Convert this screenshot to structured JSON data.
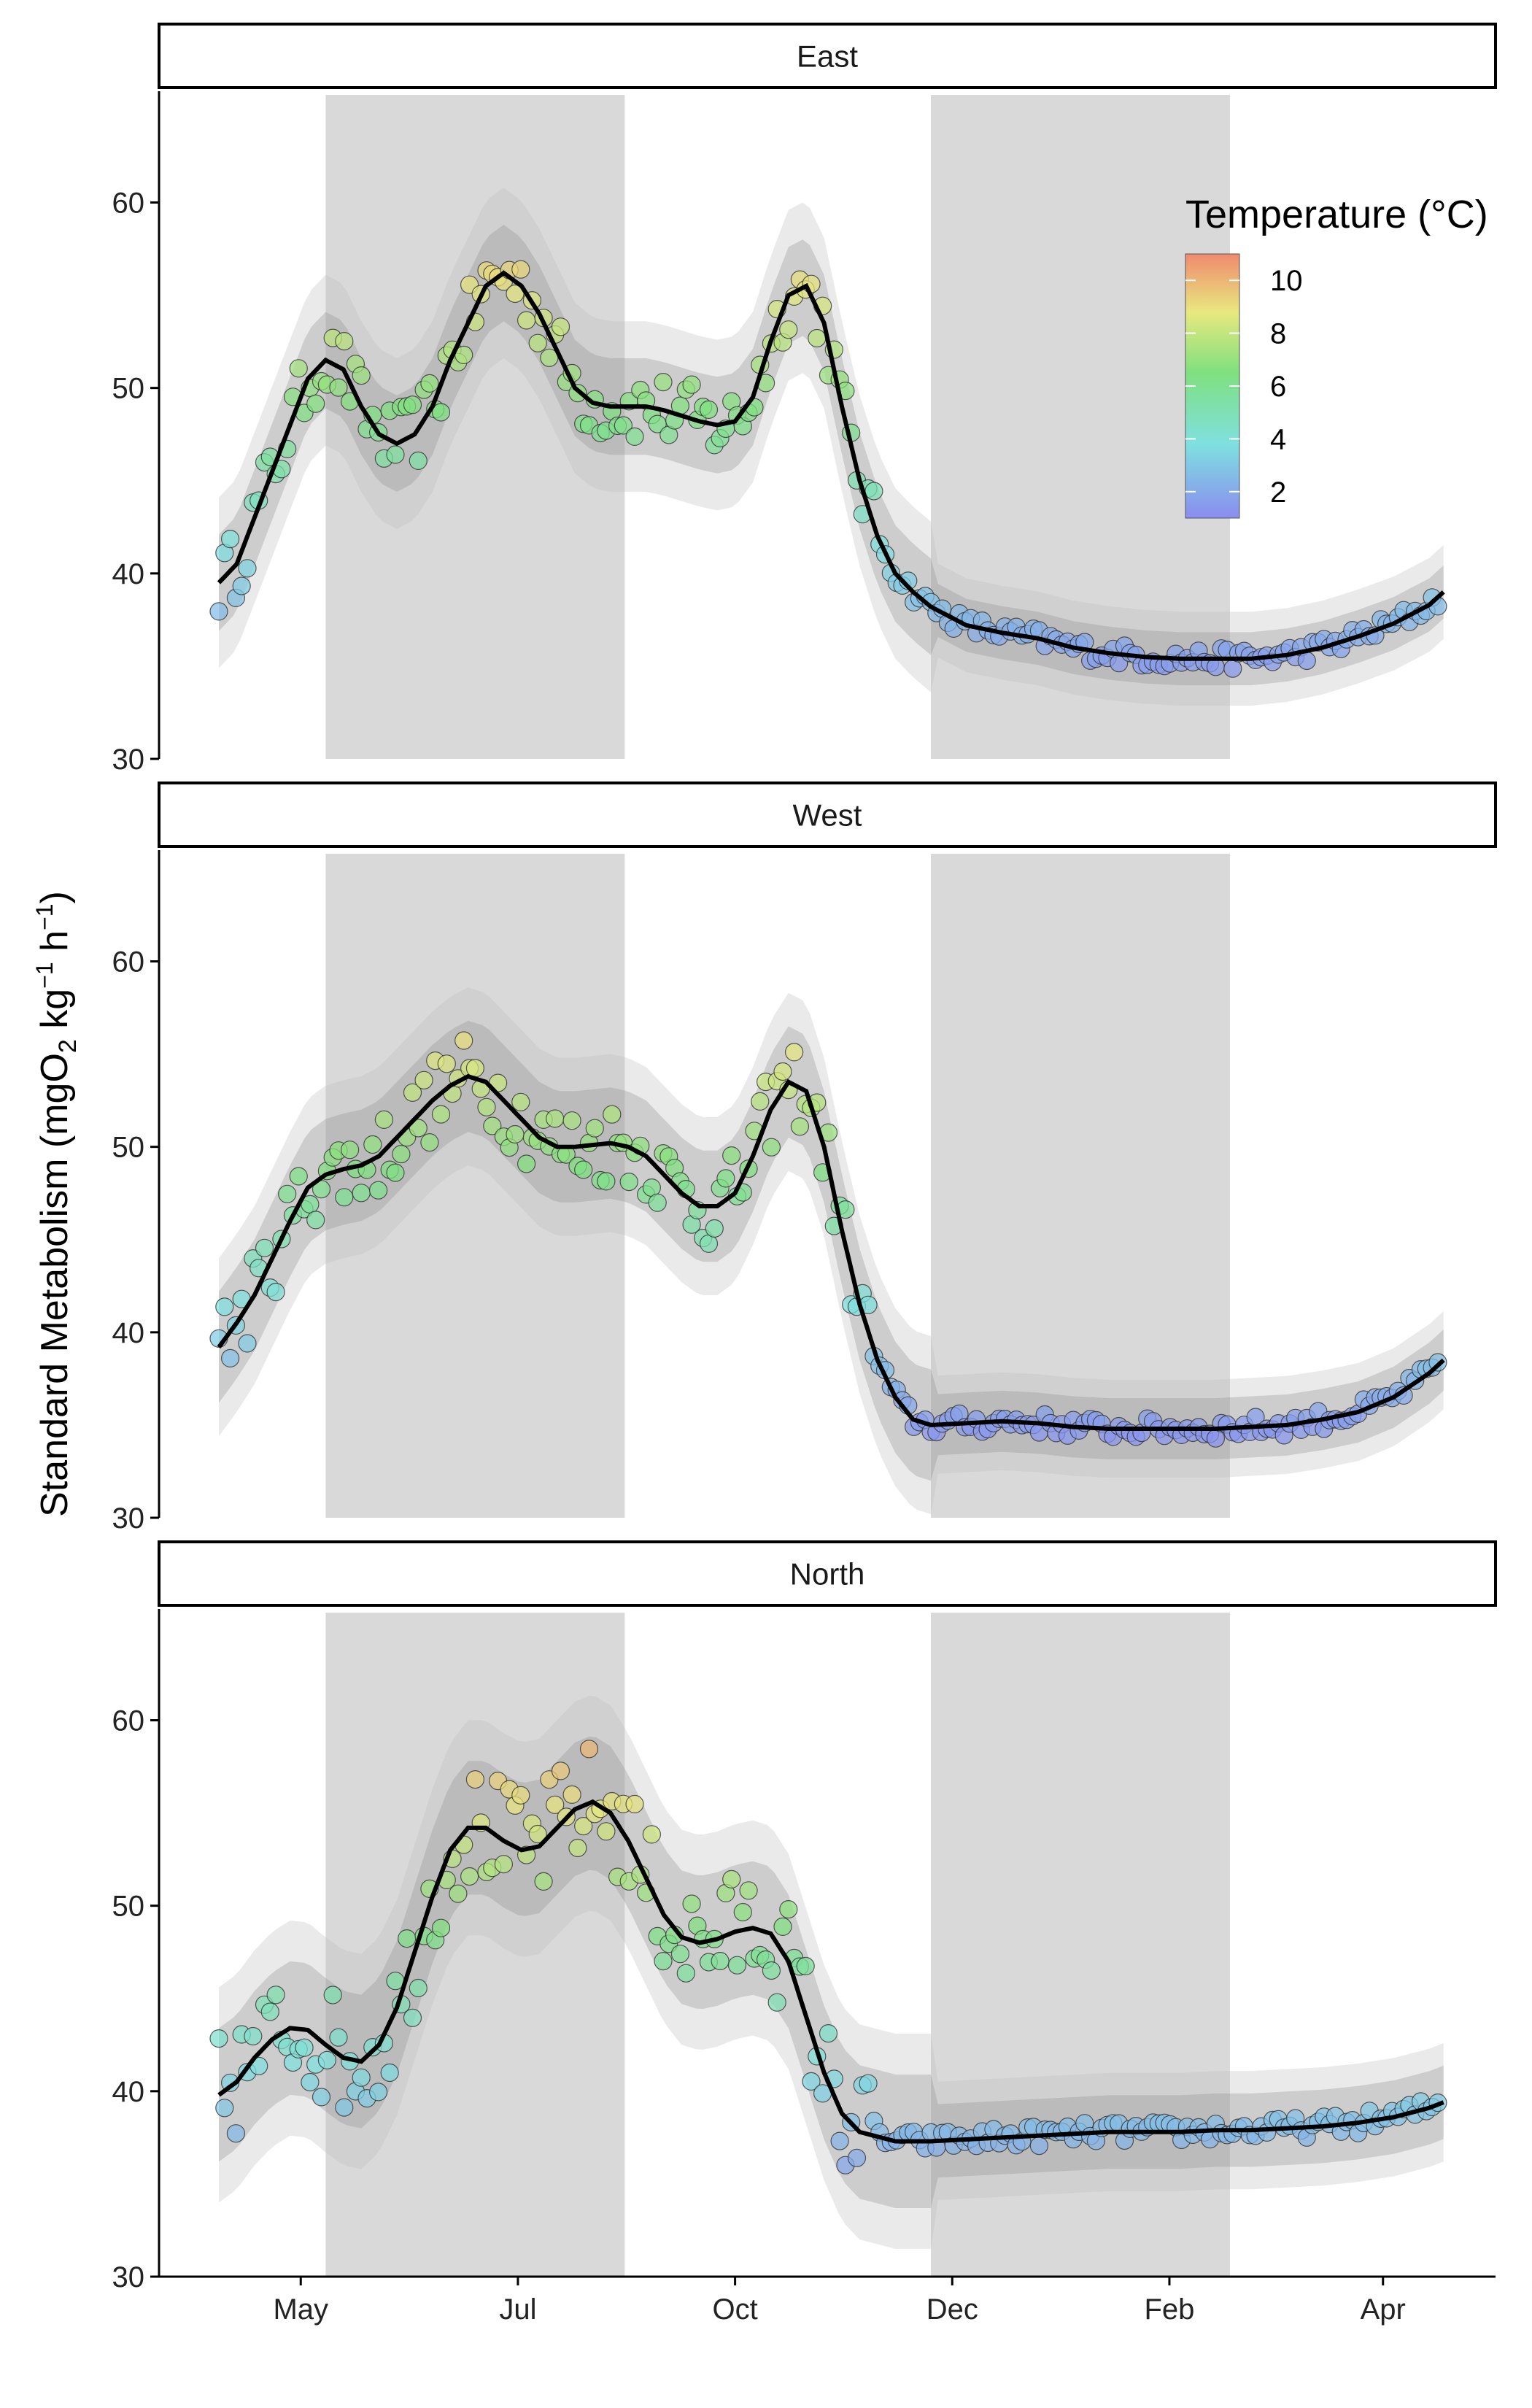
{
  "chart_data": {
    "type": "scatter",
    "ylabel_main": "Standard Metabolism (mgO",
    "ylabel_sub": "2",
    "ylabel_unit1": " kg",
    "ylabel_sup1": "−1",
    "ylabel_unit2": " h",
    "ylabel_sup2": "−1",
    "ylabel_close": ")",
    "ylim": [
      30,
      66
    ],
    "yticks": [
      30,
      40,
      50,
      60
    ],
    "xlim": [
      0,
      365
    ],
    "xticks": [
      {
        "label": "May",
        "day": 23
      },
      {
        "label": "Jul",
        "day": 84
      },
      {
        "label": "Oct",
        "day": 145
      },
      {
        "label": "Dec",
        "day": 206
      },
      {
        "label": "Feb",
        "day": 267
      },
      {
        "label": "Apr",
        "day": 327
      }
    ],
    "shaded_periods": [
      [
        30,
        114
      ],
      [
        200,
        284
      ]
    ],
    "colorbar": {
      "title": "Temperature (°C)",
      "range": [
        1,
        11
      ],
      "ticks": [
        2,
        4,
        6,
        8,
        10
      ],
      "colors": [
        "#8a8cf0",
        "#7fe0e0",
        "#7fe07f",
        "#e8e87f",
        "#f08a6e"
      ]
    },
    "panels": [
      {
        "name": "East",
        "fit": [
          [
            0,
            39.5
          ],
          [
            5,
            40.5
          ],
          [
            10,
            43
          ],
          [
            15,
            45.5
          ],
          [
            20,
            48
          ],
          [
            25,
            50.5
          ],
          [
            30,
            51.5
          ],
          [
            35,
            51
          ],
          [
            40,
            49
          ],
          [
            45,
            47.5
          ],
          [
            50,
            47
          ],
          [
            55,
            47.5
          ],
          [
            60,
            49
          ],
          [
            65,
            51.5
          ],
          [
            70,
            53.5
          ],
          [
            75,
            55.5
          ],
          [
            80,
            56.2
          ],
          [
            85,
            55.5
          ],
          [
            90,
            54
          ],
          [
            95,
            52
          ],
          [
            100,
            50
          ],
          [
            105,
            49.2
          ],
          [
            110,
            49
          ],
          [
            115,
            49
          ],
          [
            120,
            49
          ],
          [
            125,
            48.8
          ],
          [
            130,
            48.5
          ],
          [
            135,
            48.2
          ],
          [
            140,
            48
          ],
          [
            145,
            48.2
          ],
          [
            150,
            49.5
          ],
          [
            155,
            52.5
          ],
          [
            160,
            55
          ],
          [
            165,
            55.5
          ],
          [
            170,
            53.5
          ],
          [
            175,
            49
          ],
          [
            180,
            45
          ],
          [
            185,
            42
          ],
          [
            190,
            40
          ],
          [
            195,
            39
          ],
          [
            200,
            38.2
          ],
          [
            210,
            37.2
          ],
          [
            220,
            36.8
          ],
          [
            230,
            36.5
          ],
          [
            240,
            36
          ],
          [
            250,
            35.7
          ],
          [
            260,
            35.5
          ],
          [
            270,
            35.4
          ],
          [
            280,
            35.4
          ],
          [
            290,
            35.4
          ],
          [
            300,
            35.6
          ],
          [
            310,
            36
          ],
          [
            320,
            36.6
          ],
          [
            330,
            37.3
          ],
          [
            340,
            38.3
          ],
          [
            344,
            39
          ]
        ],
        "band_inner": 2.6,
        "band_outer": 4.6,
        "points_spread": 1.2
      },
      {
        "name": "West",
        "fit": [
          [
            0,
            39.2
          ],
          [
            5,
            40.5
          ],
          [
            10,
            42
          ],
          [
            15,
            44
          ],
          [
            20,
            46
          ],
          [
            25,
            47.8
          ],
          [
            30,
            48.5
          ],
          [
            35,
            48.8
          ],
          [
            40,
            49
          ],
          [
            45,
            49.5
          ],
          [
            50,
            50.5
          ],
          [
            55,
            51.5
          ],
          [
            60,
            52.5
          ],
          [
            65,
            53.3
          ],
          [
            70,
            53.8
          ],
          [
            75,
            53.5
          ],
          [
            80,
            52.5
          ],
          [
            85,
            51.5
          ],
          [
            90,
            50.5
          ],
          [
            95,
            50
          ],
          [
            100,
            50
          ],
          [
            105,
            50.1
          ],
          [
            110,
            50.2
          ],
          [
            115,
            50
          ],
          [
            120,
            49.5
          ],
          [
            125,
            48.5
          ],
          [
            130,
            47.5
          ],
          [
            135,
            46.8
          ],
          [
            140,
            46.8
          ],
          [
            145,
            47.5
          ],
          [
            150,
            49.5
          ],
          [
            155,
            52
          ],
          [
            160,
            53.5
          ],
          [
            165,
            53
          ],
          [
            170,
            50
          ],
          [
            175,
            45.5
          ],
          [
            180,
            41.5
          ],
          [
            185,
            38.5
          ],
          [
            190,
            36.5
          ],
          [
            195,
            35.3
          ],
          [
            200,
            35
          ],
          [
            210,
            35.1
          ],
          [
            220,
            35.2
          ],
          [
            230,
            35.1
          ],
          [
            240,
            34.9
          ],
          [
            250,
            34.8
          ],
          [
            260,
            34.8
          ],
          [
            270,
            34.8
          ],
          [
            280,
            34.8
          ],
          [
            290,
            34.9
          ],
          [
            300,
            35
          ],
          [
            310,
            35.3
          ],
          [
            320,
            35.7
          ],
          [
            330,
            36.5
          ],
          [
            340,
            37.8
          ],
          [
            344,
            38.5
          ]
        ],
        "band_inner": 3.0,
        "band_outer": 4.8,
        "points_spread": 1.4
      },
      {
        "name": "North",
        "fit": [
          [
            0,
            39.8
          ],
          [
            5,
            40.5
          ],
          [
            10,
            41.8
          ],
          [
            15,
            42.8
          ],
          [
            20,
            43.4
          ],
          [
            25,
            43.3
          ],
          [
            30,
            42.5
          ],
          [
            35,
            41.8
          ],
          [
            40,
            41.6
          ],
          [
            45,
            42.5
          ],
          [
            50,
            44.5
          ],
          [
            55,
            47.5
          ],
          [
            60,
            50.5
          ],
          [
            65,
            53
          ],
          [
            70,
            54.2
          ],
          [
            75,
            54.2
          ],
          [
            80,
            53.5
          ],
          [
            85,
            53
          ],
          [
            90,
            53.2
          ],
          [
            95,
            54.2
          ],
          [
            100,
            55.2
          ],
          [
            105,
            55.6
          ],
          [
            110,
            55
          ],
          [
            115,
            53.5
          ],
          [
            120,
            51.5
          ],
          [
            125,
            49.5
          ],
          [
            130,
            48.3
          ],
          [
            135,
            48
          ],
          [
            140,
            48.2
          ],
          [
            145,
            48.6
          ],
          [
            150,
            48.8
          ],
          [
            155,
            48.5
          ],
          [
            160,
            47
          ],
          [
            165,
            44
          ],
          [
            170,
            41
          ],
          [
            175,
            38.8
          ],
          [
            180,
            37.8
          ],
          [
            190,
            37.3
          ],
          [
            200,
            37.3
          ],
          [
            210,
            37.4
          ],
          [
            220,
            37.5
          ],
          [
            230,
            37.6
          ],
          [
            240,
            37.7
          ],
          [
            250,
            37.8
          ],
          [
            260,
            37.8
          ],
          [
            270,
            37.8
          ],
          [
            280,
            37.9
          ],
          [
            290,
            37.9
          ],
          [
            300,
            38
          ],
          [
            310,
            38.1
          ],
          [
            320,
            38.3
          ],
          [
            330,
            38.6
          ],
          [
            340,
            39.1
          ],
          [
            344,
            39.4
          ]
        ],
        "band_inner": 3.6,
        "band_outer": 5.8,
        "points_spread": 2.0
      }
    ]
  }
}
